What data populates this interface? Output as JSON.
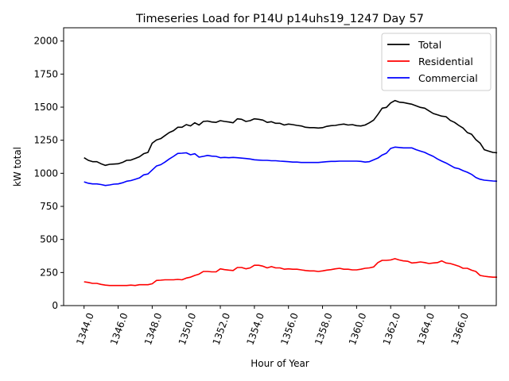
{
  "chart_data": {
    "type": "line",
    "title": "Timeseries Load for P14U p14uhs19_1247  Day 57",
    "xlabel": "Hour of Year",
    "ylabel": "kW total",
    "xlim": [
      1342.8,
      1368.2
    ],
    "ylim": [
      0,
      2100
    ],
    "xticks": [
      1344,
      1346,
      1348,
      1350,
      1352,
      1354,
      1356,
      1358,
      1360,
      1362,
      1364,
      1366
    ],
    "xtick_labels": [
      "1344.0",
      "1346.0",
      "1348.0",
      "1350.0",
      "1352.0",
      "1354.0",
      "1356.0",
      "1358.0",
      "1360.0",
      "1362.0",
      "1364.0",
      "1366.0"
    ],
    "yticks": [
      0,
      250,
      500,
      750,
      1000,
      1250,
      1500,
      1750,
      2000
    ],
    "ytick_labels": [
      "0",
      "250",
      "500",
      "750",
      "1000",
      "1250",
      "1500",
      "1750",
      "2000"
    ],
    "legend_position": "top-right",
    "x_start": 1344,
    "x_step": 0.25,
    "series": [
      {
        "name": "Total",
        "color": "#000000",
        "values": [
          1118,
          1098,
          1088,
          1088,
          1072,
          1060,
          1068,
          1070,
          1072,
          1082,
          1098,
          1100,
          1112,
          1125,
          1148,
          1158,
          1228,
          1252,
          1262,
          1285,
          1308,
          1322,
          1348,
          1348,
          1368,
          1358,
          1382,
          1365,
          1392,
          1395,
          1388,
          1385,
          1398,
          1392,
          1388,
          1382,
          1412,
          1408,
          1392,
          1398,
          1412,
          1408,
          1402,
          1385,
          1390,
          1378,
          1378,
          1365,
          1372,
          1368,
          1362,
          1358,
          1348,
          1345,
          1345,
          1342,
          1345,
          1355,
          1360,
          1362,
          1368,
          1372,
          1365,
          1368,
          1360,
          1358,
          1365,
          1382,
          1402,
          1445,
          1492,
          1498,
          1532,
          1550,
          1538,
          1535,
          1528,
          1522,
          1510,
          1498,
          1492,
          1472,
          1452,
          1442,
          1432,
          1428,
          1400,
          1385,
          1362,
          1342,
          1308,
          1295,
          1255,
          1228,
          1178,
          1168,
          1158,
          1155
        ]
      },
      {
        "name": "Residential",
        "color": "#ff0000",
        "values": [
          180,
          175,
          168,
          168,
          160,
          155,
          152,
          152,
          152,
          152,
          152,
          155,
          152,
          158,
          158,
          158,
          165,
          190,
          192,
          195,
          195,
          195,
          198,
          195,
          208,
          215,
          228,
          238,
          258,
          258,
          255,
          255,
          278,
          272,
          268,
          265,
          288,
          288,
          278,
          285,
          305,
          305,
          298,
          285,
          295,
          285,
          285,
          275,
          278,
          275,
          275,
          270,
          265,
          262,
          262,
          258,
          262,
          268,
          272,
          278,
          282,
          275,
          275,
          270,
          270,
          275,
          282,
          285,
          292,
          325,
          342,
          342,
          345,
          355,
          345,
          338,
          335,
          322,
          325,
          330,
          325,
          318,
          322,
          325,
          338,
          322,
          318,
          308,
          298,
          282,
          282,
          268,
          258,
          228,
          222,
          218,
          215,
          215
        ]
      },
      {
        "name": "Commercial",
        "color": "#0000ff",
        "values": [
          935,
          925,
          920,
          920,
          915,
          908,
          912,
          918,
          920,
          928,
          940,
          945,
          955,
          965,
          988,
          995,
          1025,
          1055,
          1065,
          1085,
          1108,
          1128,
          1150,
          1152,
          1155,
          1140,
          1148,
          1122,
          1128,
          1135,
          1130,
          1128,
          1118,
          1120,
          1118,
          1120,
          1118,
          1115,
          1112,
          1108,
          1102,
          1100,
          1098,
          1098,
          1095,
          1095,
          1092,
          1090,
          1088,
          1085,
          1085,
          1082,
          1082,
          1082,
          1082,
          1082,
          1085,
          1088,
          1090,
          1090,
          1092,
          1092,
          1092,
          1092,
          1092,
          1090,
          1085,
          1088,
          1102,
          1115,
          1138,
          1152,
          1188,
          1198,
          1195,
          1192,
          1192,
          1192,
          1178,
          1168,
          1158,
          1142,
          1128,
          1108,
          1092,
          1078,
          1060,
          1042,
          1035,
          1020,
          1008,
          992,
          968,
          955,
          948,
          945,
          942,
          940
        ]
      }
    ]
  }
}
